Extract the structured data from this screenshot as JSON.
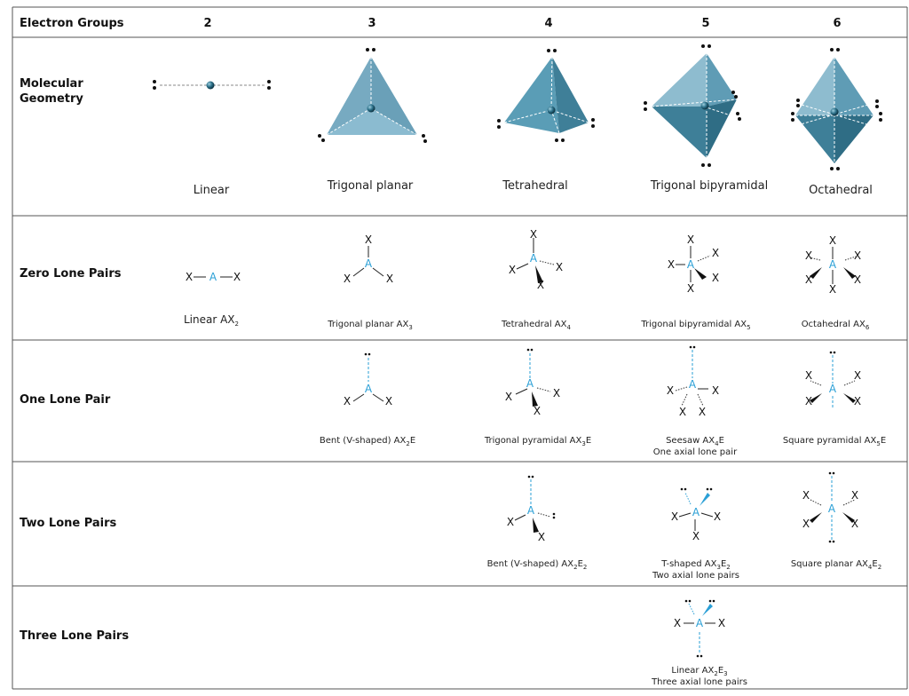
{
  "header": {
    "electron_groups_label": "Electron Groups",
    "columns": [
      "2",
      "3",
      "4",
      "5",
      "6"
    ]
  },
  "rows": {
    "molecular_geometry": "Molecular Geometry",
    "zero_lone_pairs": "Zero Lone Pairs",
    "one_lone_pair": "One Lone Pair",
    "two_lone_pairs": "Two Lone Pairs",
    "three_lone_pairs": "Three Lone Pairs"
  },
  "geometries": [
    "Linear",
    "Trigonal planar",
    "Tetrahedral",
    "Trigonal bipyramidal",
    "Octahedral"
  ],
  "atoms": {
    "central": "A",
    "ligand": "X"
  },
  "captions": {
    "zero": [
      {
        "text": "Linear AX",
        "sub": "2"
      },
      {
        "text": "Trigonal planar AX",
        "sub": "3"
      },
      {
        "text": "Tetrahedral AX",
        "sub": "4"
      },
      {
        "text": "Trigonal bipyramidal AX",
        "sub": "5"
      },
      {
        "text": "Octahedral AX",
        "sub": "6"
      }
    ],
    "one": [
      {
        "text": "Bent (V-shaped) AX",
        "sub": "2",
        "tail": "E"
      },
      {
        "text": "Trigonal pyramidal AX",
        "sub": "3",
        "tail": "E"
      },
      {
        "text": "Seesaw AX",
        "sub": "4",
        "tail": "E",
        "line2": "One axial lone pair"
      },
      {
        "text": "Square pyramidal AX",
        "sub": "5",
        "tail": "E"
      }
    ],
    "two": [
      {
        "text": "Bent (V-shaped) AX",
        "sub": "2",
        "tail": "E",
        "sub2": "2"
      },
      {
        "text": "T-shaped AX",
        "sub": "3",
        "tail": "E",
        "sub2": "2",
        "line2": "Two axial lone pairs"
      },
      {
        "text": "Square planar AX",
        "sub": "4",
        "tail": "E",
        "sub2": "2"
      }
    ],
    "three": [
      {
        "text": "Linear AX",
        "sub": "2",
        "tail": "E",
        "sub2": "3",
        "line2": "Three axial lone pairs"
      }
    ]
  },
  "colors": {
    "accent": "#2a9fd6",
    "solid_light": "#7fb1c8",
    "solid_mid": "#5f9cb5",
    "solid_dark": "#3e7f98"
  }
}
